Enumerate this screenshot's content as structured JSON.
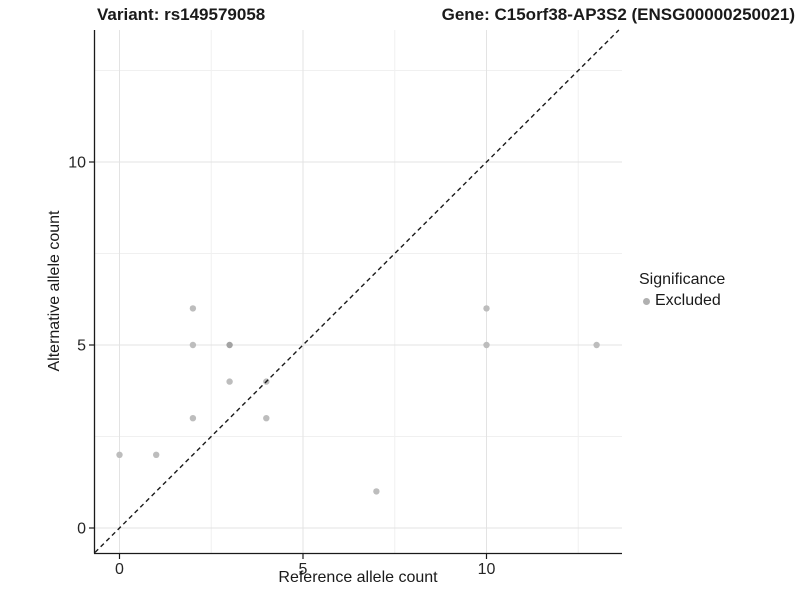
{
  "chart_data": {
    "type": "scatter",
    "title_left": "Variant: rs149579058",
    "title_right": "Gene: C15orf38-AP3S2 (ENSG00000250021)",
    "xlabel": "Reference allele count",
    "ylabel": "Alternative allele count",
    "xticks": [
      0,
      5,
      10
    ],
    "yticks": [
      0,
      5,
      10
    ],
    "minor_ticks_x": [
      2.5,
      7.5,
      12.5
    ],
    "minor_ticks_y": [
      2.5,
      7.5,
      12.5
    ],
    "xlim": [
      -0.67,
      13.7
    ],
    "ylim": [
      -0.68,
      13.6
    ],
    "grid": "major and minor gridlines, light gray",
    "points": [
      {
        "x": 0,
        "y": 2
      },
      {
        "x": 1,
        "y": 2
      },
      {
        "x": 2,
        "y": 3
      },
      {
        "x": 2,
        "y": 5
      },
      {
        "x": 2,
        "y": 6
      },
      {
        "x": 3,
        "y": 4
      },
      {
        "x": 3,
        "y": 5,
        "shade": "dark"
      },
      {
        "x": 4,
        "y": 3
      },
      {
        "x": 4,
        "y": 4
      },
      {
        "x": 7,
        "y": 1
      },
      {
        "x": 10,
        "y": 5
      },
      {
        "x": 10,
        "y": 6
      },
      {
        "x": 13,
        "y": 5
      }
    ],
    "identity_line": {
      "equation": "y = x",
      "style": "dashed",
      "color": "#1a1a1a"
    },
    "legend": {
      "title": "Significance",
      "position": "right",
      "entries": [
        {
          "label": "Excluded",
          "marker": "circle",
          "color": "#b0b0b0"
        }
      ]
    },
    "colors": {
      "point": "#bdbdbd",
      "point_dark": "#a3a3a3",
      "grid_major": "#e3e3e3",
      "grid_minor": "#f0f0f0",
      "axis_line": "#1a1a1a",
      "tick_text": "#262626",
      "background": "#ffffff"
    }
  }
}
